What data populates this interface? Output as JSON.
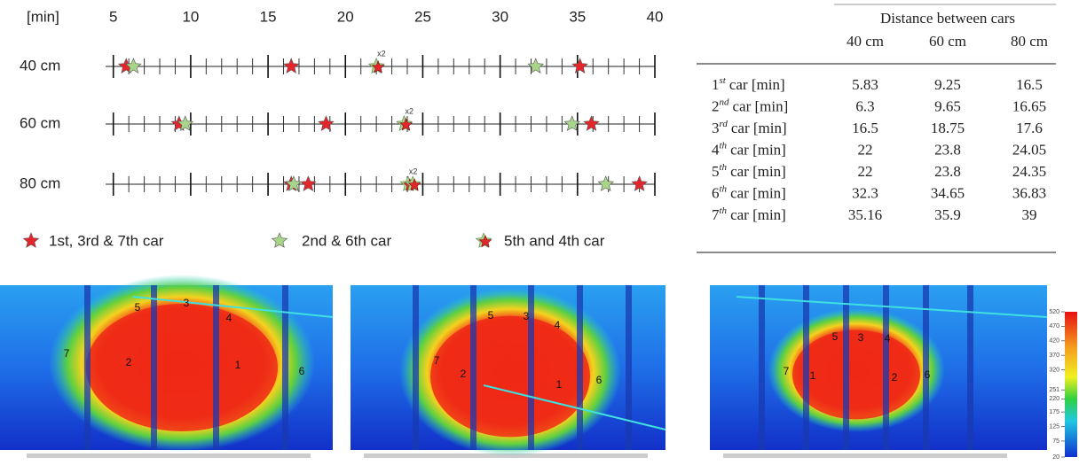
{
  "chart_data": {
    "type": "timeline",
    "x_label": "[min]",
    "xlim": [
      4.5,
      40
    ],
    "xticks": [
      5,
      10,
      15,
      20,
      25,
      30,
      35,
      40
    ],
    "minor_xticks": [
      5,
      6,
      7,
      8,
      9,
      10,
      11,
      12,
      13,
      14,
      15,
      16,
      17,
      18,
      19,
      20,
      21,
      22,
      23,
      24,
      25,
      26,
      27,
      28,
      29,
      30,
      31,
      32,
      33,
      34,
      35,
      36,
      37,
      38,
      39,
      40
    ],
    "categories": [
      "40 cm",
      "60 cm",
      "80 cm"
    ],
    "series": [
      {
        "name": "1st, 3rd & 7th car",
        "color": "#e3262b",
        "values": [
          [
            5.83,
            16.5,
            35.16
          ],
          [
            9.25,
            18.75,
            35.9
          ],
          [
            16.5,
            17.6,
            39
          ]
        ]
      },
      {
        "name": "2nd & 6th car",
        "color": "#a8d58a",
        "values": [
          [
            6.3,
            32.3
          ],
          [
            9.65,
            34.65
          ],
          [
            16.65,
            36.83
          ]
        ]
      },
      {
        "name": "5th and 4th car",
        "color": "#e3262b",
        "color2": "#a8d58a",
        "label": "x2",
        "values": [
          [
            22,
            22
          ],
          [
            23.8,
            23.8
          ],
          [
            24.05,
            24.35
          ]
        ]
      }
    ]
  },
  "table": {
    "title": "Distance between cars",
    "columns": [
      "40 cm",
      "60 cm",
      "80 cm"
    ],
    "rows": [
      {
        "num": "1",
        "sup": "st",
        "text": "car [min]",
        "cells": [
          5.83,
          9.25,
          16.5
        ]
      },
      {
        "num": "2",
        "sup": "nd",
        "text": "car [min]",
        "cells": [
          6.3,
          9.65,
          16.65
        ]
      },
      {
        "num": "3",
        "sup": "rd",
        "text": "car [min]",
        "cells": [
          16.5,
          18.75,
          17.6
        ]
      },
      {
        "num": "4",
        "sup": "th",
        "text": "car [min]",
        "cells": [
          22,
          23.8,
          24.05
        ]
      },
      {
        "num": "5",
        "sup": "th",
        "text": "car [min]",
        "cells": [
          22,
          23.8,
          24.35
        ]
      },
      {
        "num": "6",
        "sup": "th",
        "text": "car [min]",
        "cells": [
          32.3,
          34.65,
          36.83
        ]
      },
      {
        "num": "7",
        "sup": "th",
        "text": "car [min]",
        "cells": [
          35.16,
          35.9,
          39
        ]
      }
    ]
  },
  "images": {
    "panels": [
      {
        "labels": [
          "5",
          "3",
          "4",
          "7",
          "2",
          "1",
          "6"
        ]
      },
      {
        "labels": [
          "5",
          "3",
          "4",
          "7",
          "2",
          "1",
          "6"
        ]
      },
      {
        "labels": [
          "7",
          "5",
          "3",
          "4",
          "1",
          "2",
          "6"
        ]
      }
    ],
    "colorbar": {
      "lim": [
        20,
        520
      ],
      "ticks": [
        520,
        470,
        420,
        370,
        320,
        251,
        220,
        175,
        125,
        75,
        20
      ]
    }
  }
}
